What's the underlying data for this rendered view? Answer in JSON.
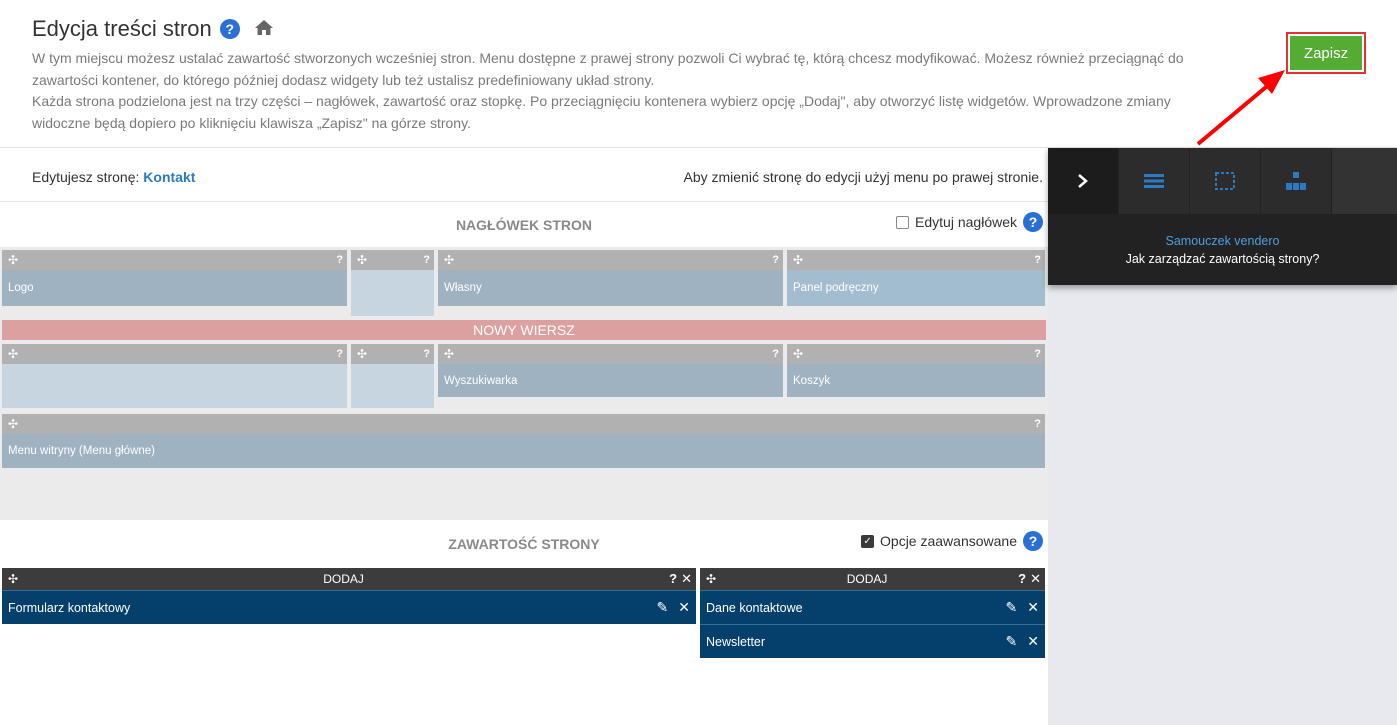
{
  "header": {
    "title": "Edycja treści stron",
    "help_icon": "?",
    "description_line1": "W tym miejscu możesz ustalać zawartość stworzonych wcześniej stron. Menu dostępne z prawej strony pozwoli Ci wybrać tę, którą chcesz modyfikować. Możesz również przeciągnąć do zawartości kontener, do którego później dodasz widgety lub też ustalisz predefiniowany układ strony.",
    "description_line2": "Każda strona podzielona jest na trzy części – nagłówek, zawartość oraz stopkę. Po przeciągnięciu kontenera wybierz opcję „Dodaj\", aby otworzyć listę widgetów. Wprowadzone zmiany widoczne będą dopiero po kliknięciu klawisza „Zapisz\" na górze strony.",
    "save_label": "Zapisz",
    "save_color": "#54ad32"
  },
  "edit_bar": {
    "prefix": "Edytujesz stronę:",
    "page_name": "Kontakt",
    "hint": "Aby zmienić stronę do edycji użyj menu po prawej stronie."
  },
  "header_section": {
    "title": "NAGŁÓWEK STRON",
    "option_label": "Edytuj nagłówek",
    "option_checked": false,
    "row1": [
      {
        "label": "Logo",
        "q": "?"
      },
      {
        "label": "",
        "q": "?"
      },
      {
        "label": "Własny",
        "q": "?"
      },
      {
        "label": "Panel podręczny",
        "q": "?"
      }
    ],
    "new_row": "NOWY WIERSZ",
    "row2": [
      {
        "label": "",
        "q": "?"
      },
      {
        "label": "",
        "q": "?"
      },
      {
        "label": "Wyszukiwarka",
        "q": "?"
      },
      {
        "label": "Koszyk",
        "q": "?"
      }
    ],
    "row3": [
      {
        "label": "Menu witryny (Menu główne)",
        "q": "?"
      }
    ]
  },
  "content_section": {
    "title": "ZAWARTOŚĆ STRONY",
    "option_label": "Opcje zaawansowane",
    "option_checked": true,
    "columns": [
      {
        "head": "DODAJ",
        "items": [
          "Formularz kontaktowy"
        ]
      },
      {
        "head": "DODAJ",
        "items": [
          "Dane kontaktowe",
          "Newsletter"
        ]
      }
    ]
  },
  "side_panel": {
    "link": "Samouczek vendero",
    "text": "Jak zarządzać zawartością strony?",
    "accent": "#2a7bc4"
  }
}
